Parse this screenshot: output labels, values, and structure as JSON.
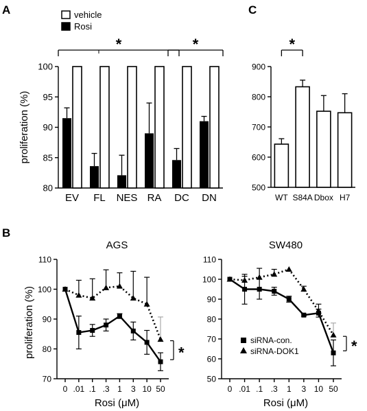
{
  "colors": {
    "ink": "#000000",
    "paper": "#ffffff",
    "err_grey": "#999999"
  },
  "panels": {
    "A": "A",
    "B": "B",
    "C": "C"
  },
  "chart_data": [
    {
      "id": "A",
      "type": "bar",
      "legend": {
        "placement": "top-left",
        "entries": [
          "vehicle",
          "Rosi"
        ]
      },
      "ylabel": "proliferation (%)",
      "ylim": [
        80,
        100
      ],
      "yticks": [
        80,
        85,
        90,
        95,
        100
      ],
      "categories": [
        "EV",
        "FL",
        "NES",
        "RA",
        "DC",
        "DN"
      ],
      "series": [
        {
          "name": "vehicle",
          "fill": "open",
          "values": [
            100,
            100,
            100,
            100,
            100,
            100
          ]
        },
        {
          "name": "Rosi",
          "fill": "filled",
          "values": [
            91.5,
            83.6,
            82.1,
            89.0,
            84.6,
            91.0
          ],
          "errors": [
            1.7,
            2.1,
            3.3,
            5.0,
            1.9,
            0.8
          ]
        }
      ],
      "significance": [
        {
          "from": "EV",
          "to": "DC",
          "label": "*"
        },
        {
          "from": "DC",
          "to": "DN",
          "label": "*"
        }
      ]
    },
    {
      "id": "C",
      "type": "bar",
      "ylim": [
        500,
        900
      ],
      "yticks": [
        500,
        600,
        700,
        800,
        900
      ],
      "categories": [
        "WT",
        "S84A",
        "Dbox",
        "H7"
      ],
      "values": [
        643,
        833,
        752,
        747
      ],
      "errors": [
        18,
        22,
        52,
        63
      ],
      "significance": [
        {
          "from": "WT",
          "to": "S84A",
          "label": "*"
        }
      ]
    },
    {
      "id": "B-AGS",
      "type": "line",
      "title": "AGS",
      "ylabel": "proliferation (%)",
      "xlabel": "Rosi (μM)",
      "ylim": [
        70,
        110
      ],
      "yticks": [
        70,
        80,
        90,
        100,
        110
      ],
      "x": [
        "0",
        ".01",
        ".1",
        ".3",
        "1",
        "3",
        "10",
        "50"
      ],
      "series": [
        {
          "name": "siRNA-con.",
          "marker": "square",
          "line": "solid",
          "values": [
            100,
            85.5,
            86.2,
            88.0,
            91.0,
            86.0,
            82.2,
            75.7
          ],
          "errors": [
            0,
            5.5,
            2.0,
            2.0,
            0.8,
            3.0,
            4.0,
            3.0
          ]
        },
        {
          "name": "siRNA-DOK1",
          "marker": "triangle",
          "line": "dotted",
          "values": [
            100,
            98.0,
            97.0,
            100.5,
            101.0,
            97.0,
            95.0,
            83.2
          ],
          "errors": [
            0,
            5.0,
            6.5,
            6.0,
            4.5,
            9.0,
            9.0,
            7.5
          ]
        }
      ],
      "significance": {
        "label": "*"
      }
    },
    {
      "id": "B-SW480",
      "type": "line",
      "title": "SW480",
      "xlabel": "Rosi (μM)",
      "ylim": [
        50,
        110
      ],
      "yticks": [
        50,
        60,
        70,
        80,
        90,
        100,
        110
      ],
      "x": [
        "0",
        ".01",
        ".1",
        ".3",
        "1",
        "3",
        "10",
        "50"
      ],
      "legend": {
        "placement": "bottom-left",
        "entries": [
          "siRNA-con.",
          "siRNA-DOK1"
        ]
      },
      "series": [
        {
          "name": "siRNA-con.",
          "marker": "square",
          "line": "solid",
          "values": [
            100,
            95.0,
            95.0,
            94.0,
            90.0,
            82.0,
            83.0,
            63.0
          ],
          "errors": [
            0,
            7.5,
            5.0,
            2.0,
            1.5,
            0.5,
            2.0,
            6.5
          ]
        },
        {
          "name": "siRNA-DOK1",
          "marker": "triangle",
          "line": "dotted",
          "values": [
            100,
            99.5,
            101.0,
            102.5,
            105.0,
            95.0,
            84.0,
            72.0
          ],
          "errors": [
            0,
            2.0,
            4.5,
            2.5,
            0,
            1.5,
            3.5,
            6.0
          ]
        }
      ],
      "significance": {
        "label": "*"
      }
    }
  ]
}
